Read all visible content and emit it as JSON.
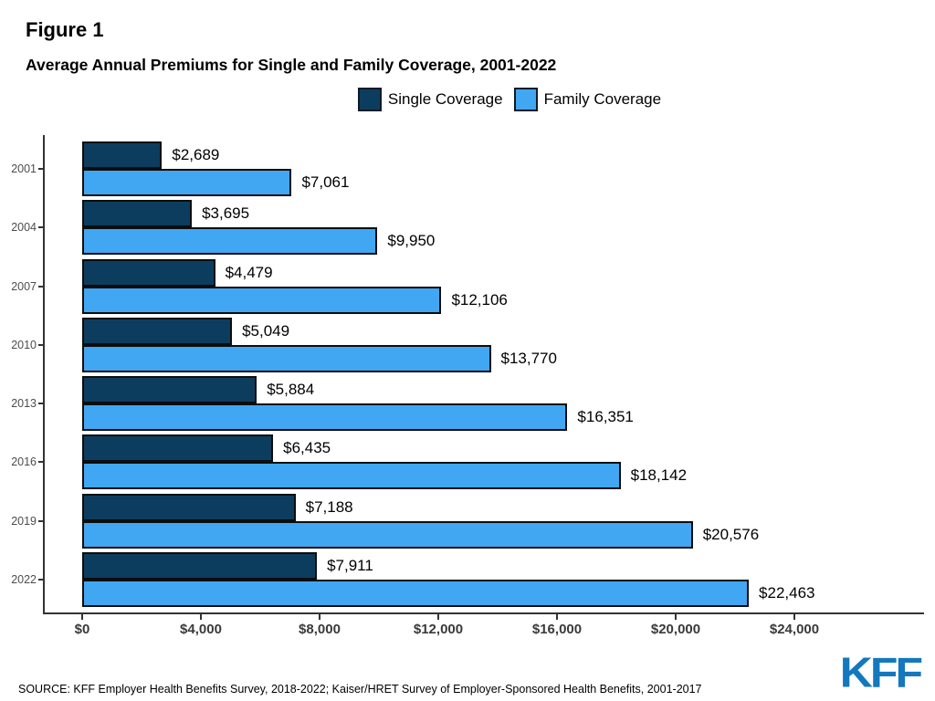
{
  "figure_label": "Figure 1",
  "title": "Average Annual Premiums for Single and Family Coverage, 2001-2022",
  "legend": [
    {
      "label": "Single Coverage",
      "color": "#0d3d5e"
    },
    {
      "label": "Family Coverage",
      "color": "#41a7f2"
    }
  ],
  "source": "SOURCE: KFF Employer Health Benefits Survey, 2018-2022; Kaiser/HRET Survey of Employer-Sponsored Health Benefits, 2001-2017",
  "logo_text": "KFF",
  "colors": {
    "single_bar": "#0d3d5e",
    "family_bar": "#41a7f2",
    "bar_border": "#0d0d0d",
    "axis": "#333333",
    "year_label": "#4d4d4d",
    "x_tick_label": "#3a3a3a",
    "logo_blue": "#1478be"
  },
  "chart_data": {
    "type": "bar",
    "orientation": "horizontal",
    "title": "Average Annual Premiums for Single and Family Coverage, 2001-2022",
    "xlabel": "",
    "ylabel": "",
    "legend_position": "top",
    "grid": false,
    "categories": [
      "2001",
      "2004",
      "2007",
      "2010",
      "2013",
      "2016",
      "2019",
      "2022"
    ],
    "series": [
      {
        "name": "Single Coverage",
        "color": "#0d3d5e",
        "values": [
          2689,
          3695,
          4479,
          5049,
          5884,
          6435,
          7188,
          7911
        ],
        "labels": [
          "$2,689",
          "$3,695",
          "$4,479",
          "$5,049",
          "$5,884",
          "$6,435",
          "$7,188",
          "$7,911"
        ]
      },
      {
        "name": "Family Coverage",
        "color": "#41a7f2",
        "values": [
          7061,
          9950,
          12106,
          13770,
          16351,
          18142,
          20576,
          22463
        ],
        "labels": [
          "$7,061",
          "$9,950",
          "$12,106",
          "$13,770",
          "$16,351",
          "$18,142",
          "$20,576",
          "$22,463"
        ]
      }
    ],
    "x_ticks": [
      {
        "label": "$0",
        "value": 0
      },
      {
        "label": "$4,000",
        "value": 4000
      },
      {
        "label": "$8,000",
        "value": 8000
      },
      {
        "label": "$12,000",
        "value": 12000
      },
      {
        "label": "$16,000",
        "value": 16000
      },
      {
        "label": "$20,000",
        "value": 20000
      },
      {
        "label": "$24,000",
        "value": 24000
      }
    ],
    "xlim": [
      0,
      27500
    ]
  }
}
